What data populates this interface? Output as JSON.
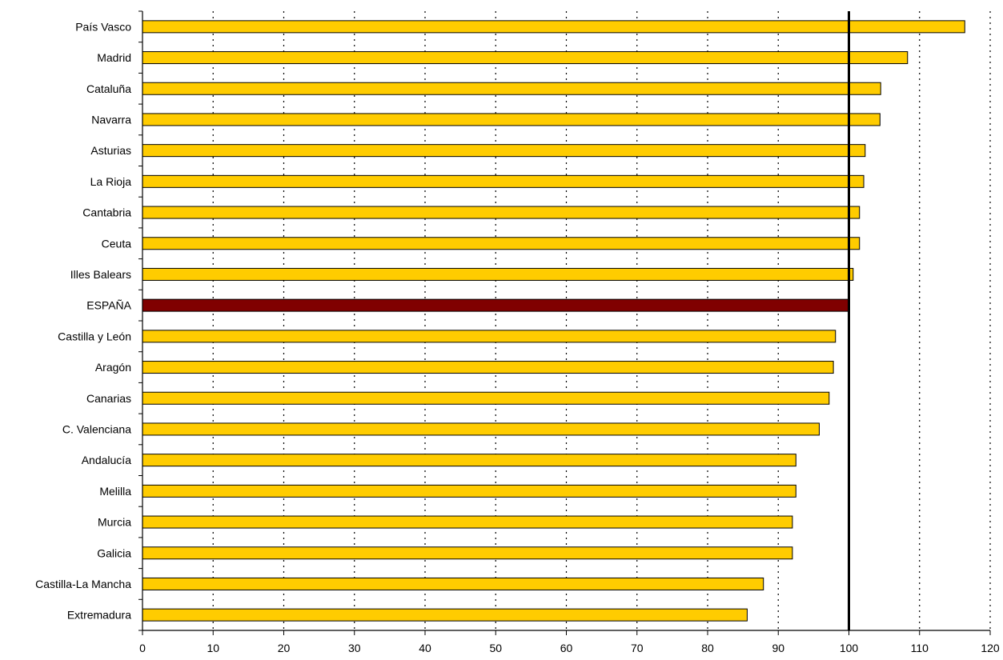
{
  "chart_data": {
    "type": "bar",
    "orientation": "horizontal",
    "title": "",
    "xlabel": "",
    "ylabel": "",
    "categories": [
      "País Vasco",
      "Madrid",
      "Cataluña",
      "Navarra",
      "Asturias",
      "La Rioja",
      "Cantabria",
      "Ceuta",
      "Illes Balears",
      "ESPAÑA",
      "Castilla y León",
      "Aragón",
      "Canarias",
      "C. Valenciana",
      "Andalucía",
      "Melilla",
      "Murcia",
      "Galicia",
      "Castilla-La Mancha",
      "Extremadura"
    ],
    "values": [
      116.4,
      108.3,
      104.5,
      104.4,
      102.3,
      102.1,
      101.5,
      101.5,
      100.6,
      100.0,
      98.1,
      97.8,
      97.2,
      95.8,
      92.5,
      92.5,
      92.0,
      92.0,
      87.9,
      85.6
    ],
    "highlight_category": "ESPAÑA",
    "reference_value": 100,
    "xlim": [
      0,
      120
    ],
    "x_ticks": [
      "0",
      "10",
      "20",
      "30",
      "40",
      "50",
      "60",
      "70",
      "80",
      "90",
      "100",
      "110",
      "120"
    ],
    "grid": "vertical dotted",
    "legend": "none",
    "colors": {
      "bar": "#FFCC00",
      "highlight_bar": "#800000",
      "bar_edge": "#000000",
      "reference_line": "#000000",
      "gridline": "#000000"
    }
  }
}
